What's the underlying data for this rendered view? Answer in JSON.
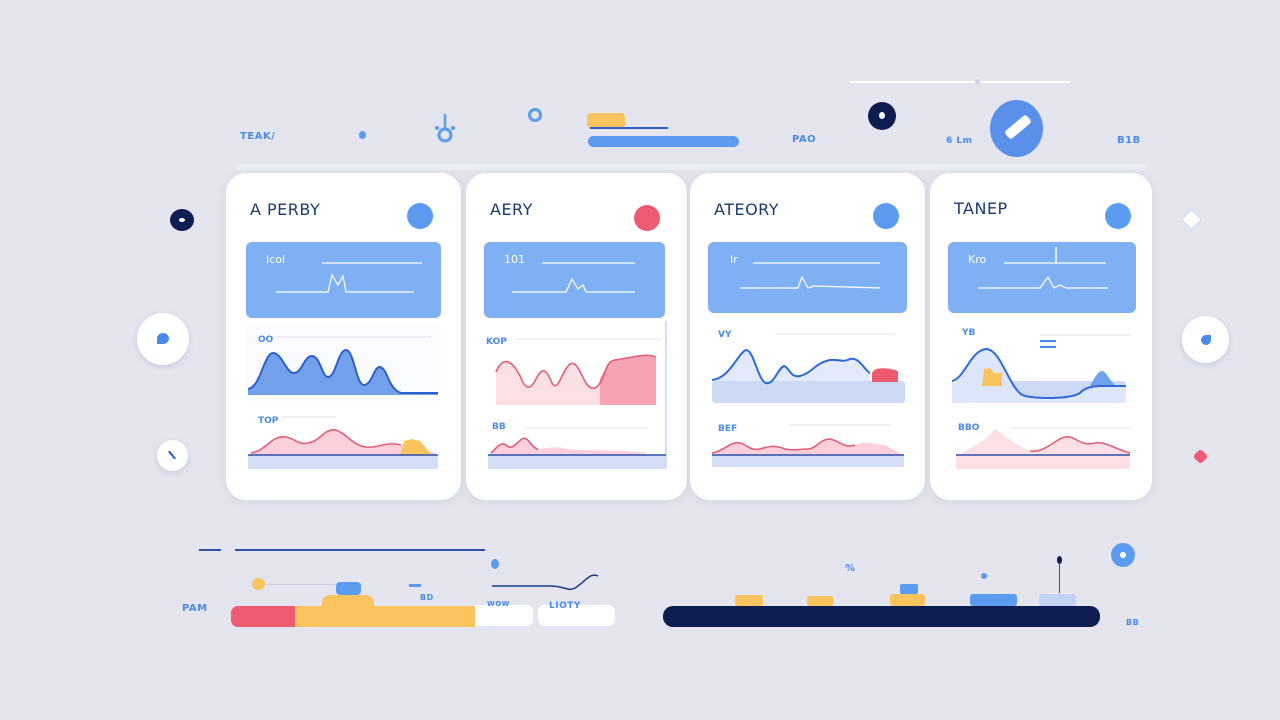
{
  "header": {
    "left_label": "TEAK/",
    "label_center": "PAO",
    "label_right": "6 Lm",
    "label_far_right": "B1B"
  },
  "cards": [
    {
      "title": "A PERBY",
      "icon_color": "#5b9cf0",
      "box_label": "Icol",
      "chart1_label": "OO",
      "chart2_label": "TOP"
    },
    {
      "title": "AERY",
      "icon_color": "#ef5a73",
      "box_label": "101",
      "chart1_label": "KOP",
      "chart2_label": "BB"
    },
    {
      "title": "ATEORY",
      "icon_color": "#5b9cf0",
      "box_label": "Ir",
      "chart1_label": "VY",
      "chart2_label": "BEF"
    },
    {
      "title": "TANEP",
      "icon_color": "#5b9cf0",
      "box_label": "Kro",
      "chart1_label": "YB",
      "chart2_label": "BBO"
    }
  ],
  "footer": {
    "left_label": "PAM",
    "small_label_1": "BD",
    "chip_1": "WOW",
    "chip_2": "LIOTY",
    "right_label": "BB"
  },
  "colors": {
    "accent_blue": "#5b9cf0",
    "navy": "#0d1d52",
    "red": "#ef5a73",
    "yellow": "#fbc45e",
    "background": "#e4e5ef"
  }
}
